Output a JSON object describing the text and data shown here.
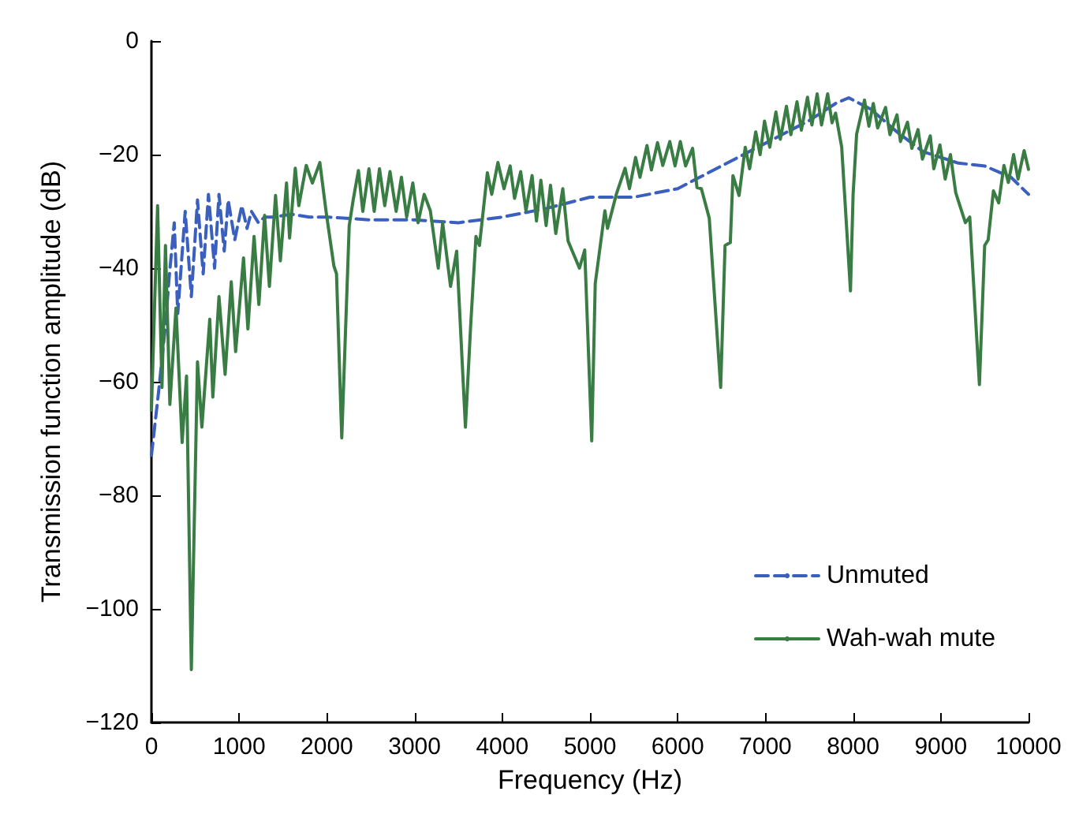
{
  "chart_data": {
    "type": "line",
    "xlabel": "Frequency (Hz)",
    "ylabel": "Transmission function amplitude (dB)",
    "xlim": [
      0,
      10000
    ],
    "xticks": [
      0,
      1000,
      2000,
      3000,
      4000,
      5000,
      6000,
      7000,
      8000,
      9000,
      10000
    ],
    "ylim": [
      -120,
      0
    ],
    "yticks": [
      -120,
      -100,
      -80,
      -60,
      -40,
      -20,
      0
    ],
    "grid": false,
    "legend": "bottom right",
    "marker": "none",
    "series": [
      {
        "name": "Unmuted",
        "color": "#3a5fbf",
        "line_style": "dashed",
        "x": [
          0,
          80,
          160,
          200,
          260,
          300,
          385,
          455,
          525,
          590,
          650,
          720,
          770,
          830,
          875,
          950,
          1030,
          1090,
          1140,
          1220,
          1290,
          1400,
          1600,
          1800,
          2000,
          2500,
          3000,
          3500,
          4000,
          4500,
          5000,
          5500,
          6000,
          6500,
          7000,
          7500,
          7800,
          7950,
          8200,
          8500,
          8800,
          9200,
          9500,
          9800,
          10000
        ],
        "values": [
          -73,
          -62,
          -50,
          -42,
          -32,
          -48,
          -30,
          -45,
          -28,
          -41,
          -27,
          -40,
          -27,
          -37,
          -28,
          -35,
          -29,
          -33,
          -30,
          -32,
          -31,
          -31,
          -30.5,
          -31,
          -31,
          -31.5,
          -31.5,
          -32,
          -31,
          -29.5,
          -27.5,
          -27.5,
          -26,
          -22,
          -18,
          -14,
          -11,
          -10,
          -12,
          -16,
          -19.5,
          -21.5,
          -22,
          -24,
          -27
        ]
      },
      {
        "name": "Wah-wah mute",
        "color": "#3a7d44",
        "line_style": "solid",
        "x": [
          0,
          70,
          120,
          160,
          210,
          280,
          350,
          400,
          455,
          525,
          575,
          665,
          700,
          770,
          840,
          910,
          960,
          1050,
          1100,
          1170,
          1225,
          1290,
          1345,
          1415,
          1470,
          1540,
          1575,
          1640,
          1680,
          1765,
          1835,
          1920,
          1990,
          2080,
          2110,
          2170,
          2255,
          2300,
          2360,
          2410,
          2480,
          2540,
          2600,
          2660,
          2720,
          2790,
          2850,
          2910,
          2980,
          3040,
          3110,
          3180,
          3270,
          3320,
          3410,
          3480,
          3580,
          3640,
          3700,
          3740,
          3830,
          3880,
          3950,
          4020,
          4090,
          4140,
          4210,
          4270,
          4340,
          4390,
          4440,
          4500,
          4550,
          4610,
          4690,
          4750,
          4880,
          4940,
          5020,
          5060,
          5170,
          5200,
          5300,
          5400,
          5450,
          5520,
          5570,
          5650,
          5700,
          5770,
          5830,
          5910,
          5970,
          6030,
          6090,
          6170,
          6220,
          6270,
          6360,
          6490,
          6540,
          6600,
          6630,
          6700,
          6770,
          6820,
          6890,
          6940,
          6990,
          7050,
          7120,
          7170,
          7240,
          7290,
          7360,
          7410,
          7480,
          7530,
          7590,
          7640,
          7710,
          7760,
          7800,
          7870,
          7970,
          8000,
          8040,
          8130,
          8180,
          8230,
          8280,
          8370,
          8420,
          8500,
          8540,
          8620,
          8670,
          8740,
          8790,
          8880,
          8920,
          8990,
          9050,
          9110,
          9170,
          9280,
          9330,
          9440,
          9500,
          9540,
          9600,
          9660,
          9720,
          9770,
          9830,
          9880,
          9950,
          10000
        ],
        "values": [
          -65,
          -29,
          -61,
          -36,
          -64,
          -47,
          -70.7,
          -59,
          -110.7,
          -56.5,
          -68,
          -49,
          -62.7,
          -45,
          -58.7,
          -42.4,
          -54.7,
          -38.2,
          -50.7,
          -34.4,
          -46.4,
          -30.7,
          -43.2,
          -27.2,
          -38.7,
          -25,
          -34.7,
          -22.4,
          -29,
          -21.9,
          -25,
          -21.4,
          -29.9,
          -39.6,
          -41,
          -69.9,
          -32.5,
          -28,
          -22.8,
          -30,
          -22.5,
          -30,
          -22.5,
          -29,
          -23,
          -30,
          -24,
          -31,
          -25,
          -32,
          -27,
          -29.9,
          -40,
          -32,
          -43.2,
          -37,
          -68,
          -50,
          -34.4,
          -36,
          -23.2,
          -27,
          -21.4,
          -26,
          -22,
          -27.7,
          -23,
          -29.9,
          -23.7,
          -31.7,
          -24.5,
          -32.5,
          -25.4,
          -33.9,
          -26,
          -35.2,
          -40,
          -36.8,
          -70.4,
          -42.7,
          -29.9,
          -33,
          -27,
          -22.4,
          -26,
          -20.5,
          -24,
          -18.4,
          -22.7,
          -17.9,
          -21.9,
          -17.7,
          -22,
          -17.7,
          -22,
          -18.9,
          -25.8,
          -26,
          -31.2,
          -61,
          -36,
          -35.5,
          -23.7,
          -27.2,
          -18.7,
          -22.5,
          -16,
          -20,
          -14.1,
          -18.7,
          -12.5,
          -17.3,
          -11.5,
          -16.5,
          -10.7,
          -15.7,
          -9.9,
          -14.8,
          -9.3,
          -14.8,
          -9.3,
          -14.4,
          -12.7,
          -18.7,
          -44,
          -27,
          -16.4,
          -10.4,
          -15,
          -11,
          -15.3,
          -11.7,
          -16.5,
          -13,
          -17.7,
          -14.3,
          -18.9,
          -15.6,
          -20.8,
          -16.7,
          -22.5,
          -18.3,
          -24.3,
          -20,
          -26.7,
          -32,
          -31,
          -60.5,
          -36,
          -35,
          -26.4,
          -28.5,
          -21.9,
          -24.9,
          -20,
          -24.3,
          -19.3,
          -22.6
        ]
      }
    ]
  }
}
